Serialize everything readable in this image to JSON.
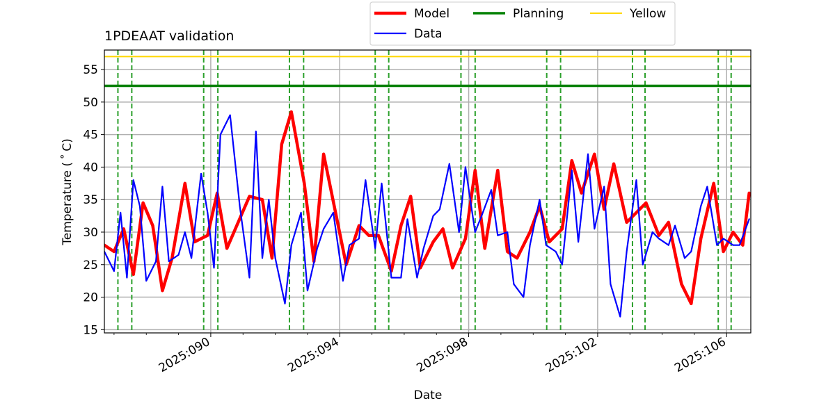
{
  "chart_data": {
    "type": "line",
    "title": "1PDEAAT validation",
    "xlabel": "Date",
    "ylabel": "Temperature ($^\\circ$C)",
    "ylabel_display": "Temperature ( ˚ C)",
    "xlim": [
      2025.0867,
      2025.10675
    ],
    "ylim": [
      14.5,
      58
    ],
    "grid": true,
    "legend_placement": "top-center, above plot",
    "x_ticks": [
      2025.09,
      2025.094,
      2025.098,
      2025.102,
      2025.106
    ],
    "x_tick_labels": [
      "2025:090",
      "2025:094",
      "2025:098",
      "2025:102",
      "2025:106"
    ],
    "y_ticks": [
      15,
      20,
      25,
      30,
      35,
      40,
      45,
      50,
      55
    ],
    "y_tick_labels": [
      "15",
      "20",
      "25",
      "30",
      "35",
      "40",
      "45",
      "50",
      "55"
    ],
    "legend": [
      {
        "name": "Model",
        "color": "#ff0000"
      },
      {
        "name": "Data",
        "color": "#0000ff"
      },
      {
        "name": "Planning",
        "color": "#008000"
      },
      {
        "name": "Yellow",
        "color": "#ffd700"
      }
    ],
    "limits": [
      {
        "name": "Planning",
        "value": 52.5,
        "color": "#008000"
      },
      {
        "name": "Yellow",
        "value": 57.0,
        "color": "#ffd700"
      }
    ],
    "vertical_markers_x": [
      2025.08712,
      2025.08755,
      2025.08978,
      2025.09022,
      2025.09244,
      2025.09288,
      2025.0951,
      2025.09552,
      2025.09776,
      2025.0982,
      2025.10042,
      2025.10085,
      2025.10308,
      2025.10347,
      2025.10574,
      2025.10614
    ],
    "vertical_marker_color": "#2ca02c",
    "series": [
      {
        "name": "Model",
        "color": "#ff0000",
        "x": [
          2025.0867,
          2025.087,
          2025.0873,
          2025.0876,
          2025.0879,
          2025.0882,
          2025.0885,
          2025.0888,
          2025.0892,
          2025.0895,
          2025.0899,
          2025.0902,
          2025.0905,
          2025.0912,
          2025.0916,
          2025.0919,
          2025.0922,
          2025.0925,
          2025.0929,
          2025.0932,
          2025.0935,
          2025.0942,
          2025.0946,
          2025.0949,
          2025.0952,
          2025.0956,
          2025.0959,
          2025.0962,
          2025.0965,
          2025.0969,
          2025.0972,
          2025.0975,
          2025.0979,
          2025.0982,
          2025.0985,
          2025.0989,
          2025.0992,
          2025.0995,
          2025.0999,
          2025.1002,
          2025.1005,
          2025.1009,
          2025.1012,
          2025.1015,
          2025.1019,
          2025.1022,
          2025.1025,
          2025.1029,
          2025.1032,
          2025.1035,
          2025.1039,
          2025.1042,
          2025.1046,
          2025.1049,
          2025.1052,
          2025.1056,
          2025.1059,
          2025.1062,
          2025.1065,
          2025.1067
        ],
        "y": [
          28.0,
          27.0,
          30.5,
          23.5,
          34.5,
          31.0,
          21.0,
          26.0,
          37.5,
          28.5,
          29.5,
          36.0,
          27.5,
          35.5,
          35.0,
          26.0,
          43.5,
          48.5,
          37.5,
          25.5,
          42.0,
          25.0,
          31.0,
          29.5,
          29.5,
          24.0,
          31.0,
          35.5,
          24.5,
          28.5,
          30.5,
          24.5,
          29.0,
          39.5,
          27.5,
          39.5,
          27.0,
          26.0,
          30.0,
          34.0,
          28.5,
          30.5,
          41.0,
          36.0,
          42.0,
          33.5,
          40.5,
          31.5,
          33.0,
          34.5,
          29.5,
          31.5,
          22.0,
          19.0,
          29.0,
          37.5,
          27.0,
          30.0,
          28.0,
          36.0
        ]
      },
      {
        "name": "Data",
        "color": "#0000ff",
        "x": [
          2025.0867,
          2025.087,
          2025.0872,
          2025.0874,
          2025.0876,
          2025.0878,
          2025.088,
          2025.0883,
          2025.0885,
          2025.0887,
          2025.089,
          2025.0892,
          2025.0894,
          2025.0897,
          2025.0899,
          2025.0901,
          2025.0903,
          2025.0906,
          2025.0909,
          2025.0912,
          2025.0914,
          2025.0916,
          2025.0918,
          2025.092,
          2025.0923,
          2025.0925,
          2025.0928,
          2025.093,
          2025.0933,
          2025.0935,
          2025.0938,
          2025.0941,
          2025.0943,
          2025.0946,
          2025.0948,
          2025.0951,
          2025.0953,
          2025.0956,
          2025.0959,
          2025.0961,
          2025.0964,
          2025.0966,
          2025.0969,
          2025.0971,
          2025.0974,
          2025.0977,
          2025.0979,
          2025.0982,
          2025.0984,
          2025.0987,
          2025.0989,
          2025.0992,
          2025.0994,
          2025.0997,
          2025.0999,
          2025.1002,
          2025.1004,
          2025.1007,
          2025.1009,
          2025.1012,
          2025.1014,
          2025.1017,
          2025.1019,
          2025.1022,
          2025.1024,
          2025.1027,
          2025.1029,
          2025.1032,
          2025.1034,
          2025.1037,
          2025.1039,
          2025.1042,
          2025.1044,
          2025.1047,
          2025.1049,
          2025.1052,
          2025.1054,
          2025.1057,
          2025.1059,
          2025.1062,
          2025.1064,
          2025.1067
        ],
        "y": [
          27.0,
          24.0,
          33.0,
          23.0,
          38.0,
          34.0,
          22.5,
          25.5,
          37.0,
          25.5,
          26.5,
          30.0,
          26.0,
          39.0,
          33.0,
          24.5,
          45.0,
          48.0,
          34.0,
          23.0,
          45.5,
          26.0,
          35.0,
          26.0,
          19.0,
          28.0,
          33.0,
          21.0,
          27.5,
          30.5,
          33.0,
          22.5,
          28.0,
          29.0,
          38.0,
          27.5,
          37.5,
          23.0,
          23.0,
          32.0,
          23.0,
          27.5,
          32.5,
          33.5,
          40.5,
          30.0,
          40.0,
          30.0,
          32.5,
          36.5,
          29.5,
          30.0,
          22.0,
          20.0,
          28.0,
          35.0,
          28.0,
          27.0,
          25.0,
          39.5,
          28.5,
          42.0,
          30.5,
          37.0,
          22.0,
          17.0,
          27.0,
          38.0,
          25.0,
          30.0,
          29.0,
          28.0,
          31.0,
          26.0,
          27.0,
          34.0,
          37.0,
          28.0,
          29.0,
          28.0,
          28.0,
          32.0
        ]
      }
    ]
  }
}
